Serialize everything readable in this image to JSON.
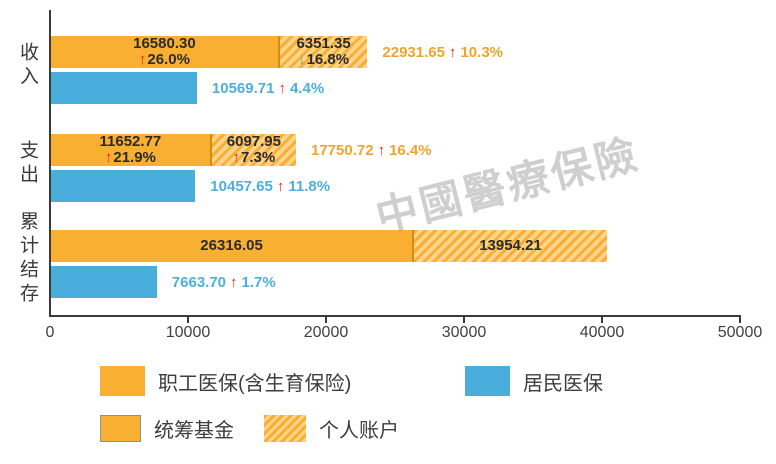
{
  "watermark": "中國醫療保險",
  "chart_data": {
    "type": "bar",
    "orientation": "horizontal",
    "title": "",
    "xlabel": "",
    "ylabel": "",
    "xlim": [
      0,
      50000
    ],
    "x_ticks": [
      "0",
      "10000",
      "20000",
      "30000",
      "40000",
      "50000"
    ],
    "grid": false,
    "legend_position": "bottom",
    "categories": [
      "收入",
      "支出",
      "累计结存"
    ],
    "colors": {
      "employee_solid": "#F9AF32",
      "employee_hatch_bg": "#FBD48E",
      "resident": "#4AAEDC",
      "up_arrow": "#E3261A",
      "down_arrow": "#63B082",
      "total_text": "#EFA42D",
      "resident_text": "#4FAEDC"
    },
    "legend": [
      {
        "label": "职工医保(含生育保险)",
        "style": "orange-solid"
      },
      {
        "label": "居民医保",
        "style": "blue-solid"
      },
      {
        "label": "统筹基金",
        "style": "orange-solid-bordered"
      },
      {
        "label": "个人账户",
        "style": "orange-hatched"
      }
    ],
    "groups": [
      {
        "category": "收入",
        "pooled": {
          "value": 16580.3,
          "label": "16580.30",
          "change": "26.0%",
          "direction": "up"
        },
        "personal": {
          "value": 6351.35,
          "label": "6351.35",
          "change": "16.8%",
          "direction": "down"
        },
        "total": {
          "value": 22931.65,
          "label": "22931.65",
          "change": "10.3%",
          "direction": "up"
        },
        "resident": {
          "value": 10569.71,
          "label": "10569.71",
          "change": "4.4%",
          "direction": "up"
        }
      },
      {
        "category": "支出",
        "pooled": {
          "value": 11652.77,
          "label": "11652.77",
          "change": "21.9%",
          "direction": "up"
        },
        "personal": {
          "value": 6097.95,
          "label": "6097.95",
          "change": "7.3%",
          "direction": "up"
        },
        "total": {
          "value": 17750.72,
          "label": "17750.72",
          "change": "16.4%",
          "direction": "up"
        },
        "resident": {
          "value": 10457.65,
          "label": "10457.65",
          "change": "11.8%",
          "direction": "up"
        }
      },
      {
        "category": "累计结存",
        "pooled": {
          "value": 26316.05,
          "label": "26316.05"
        },
        "personal": {
          "value": 13954.21,
          "label": "13954.21"
        },
        "resident": {
          "value": 7663.7,
          "label": "7663.70",
          "change": "1.7%",
          "direction": "up"
        }
      }
    ]
  }
}
